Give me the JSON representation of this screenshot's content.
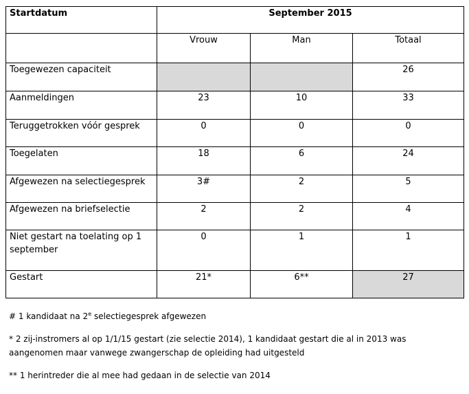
{
  "header": {
    "row_label": "Startdatum",
    "period": "September 2015",
    "columns": [
      "Vrouw",
      "Man",
      "Totaal"
    ]
  },
  "rows": [
    {
      "label": "Toegewezen capaciteit",
      "vrouw": "",
      "man": "",
      "totaal": "26"
    },
    {
      "label": "Aanmeldingen",
      "vrouw": "23",
      "man": "10",
      "totaal": "33"
    },
    {
      "label": "Teruggetrokken vóór gesprek",
      "vrouw": "0",
      "man": "0",
      "totaal": "0"
    },
    {
      "label": "Toegelaten",
      "vrouw": "18",
      "man": "6",
      "totaal": "24"
    },
    {
      "label": "Afgewezen na selectiegesprek",
      "vrouw": "3#",
      "man": "2",
      "totaal": "5"
    },
    {
      "label": "Afgewezen na briefselectie",
      "vrouw": "2",
      "man": "2",
      "totaal": "4"
    },
    {
      "label": "Niet gestart na toelating op 1 september",
      "vrouw": "0",
      "man": "1",
      "totaal": "1"
    },
    {
      "label": "Gestart",
      "vrouw": "21*",
      "man": "6**",
      "totaal": "27"
    }
  ],
  "shaded_color": "#d9d9d9",
  "notes": {
    "note1_before": "# 1 kandidaat  na 2",
    "note1_sup": "e",
    "note1_after": " selectiegesprek  afgewezen",
    "note2": "* 2 zij-instromers  al op 1/1/15 gestart (zie selectie 2014), 1 kandidaat gestart die al in 2013 was aangenomen maar vanwege zwangerschap de opleiding  had uitgesteld",
    "note3": "** 1 herintreder die al mee had gedaan in de selectie van 2014"
  }
}
